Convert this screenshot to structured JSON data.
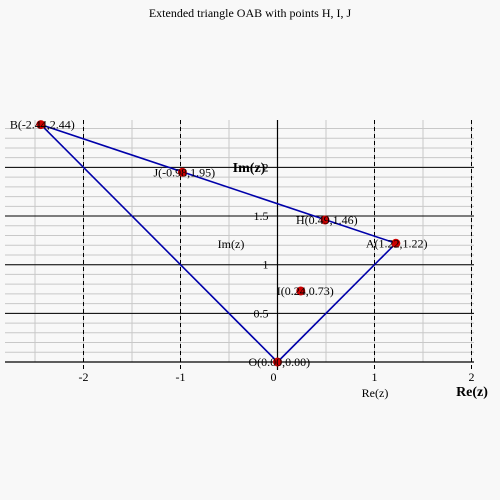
{
  "chart_data": {
    "type": "line",
    "title": "Extended triangle OAB with points H, I, J",
    "xlim": [
      -2.44,
      2
    ],
    "ylim": [
      0,
      2.44
    ],
    "x_ticks": [
      {
        "value": -2,
        "label": "-2"
      },
      {
        "value": -1,
        "label": "-1"
      },
      {
        "value": 0,
        "label": "0"
      },
      {
        "value": 1,
        "label": "1"
      },
      {
        "value": 2,
        "label": "2"
      }
    ],
    "y_ticks": [
      {
        "value": 0.5,
        "label": "0.5"
      },
      {
        "value": 1,
        "label": "1"
      },
      {
        "value": 1.5,
        "label": "1.5"
      },
      {
        "value": 2,
        "label": "2"
      }
    ],
    "xlabel_bold": "Re(z)",
    "ylabel_bold": "Im(z)",
    "xlabel": "Re(z)",
    "ylabel": "Im(z)",
    "grid": true,
    "line_color": "#0000aa",
    "point_color": "#cc0000",
    "triangle": [
      "O",
      "A",
      "B"
    ],
    "points": [
      {
        "name": "O",
        "x": 0,
        "y": 0,
        "label": "O(0.00,0.00)"
      },
      {
        "name": "A",
        "x": 1.22,
        "y": 1.22,
        "label": "A(1.22,1.22)"
      },
      {
        "name": "B",
        "x": -2.44,
        "y": 2.44,
        "label": "B(-2.44,2.44)"
      },
      {
        "name": "H",
        "x": 0.49,
        "y": 1.46,
        "label": "H(0.49,1.46)"
      },
      {
        "name": "I",
        "x": 0.24,
        "y": 0.73,
        "label": "I(0.24,0.73)"
      },
      {
        "name": "J",
        "x": -0.98,
        "y": 1.95,
        "label": "J(-0.98,1.95)"
      }
    ]
  }
}
